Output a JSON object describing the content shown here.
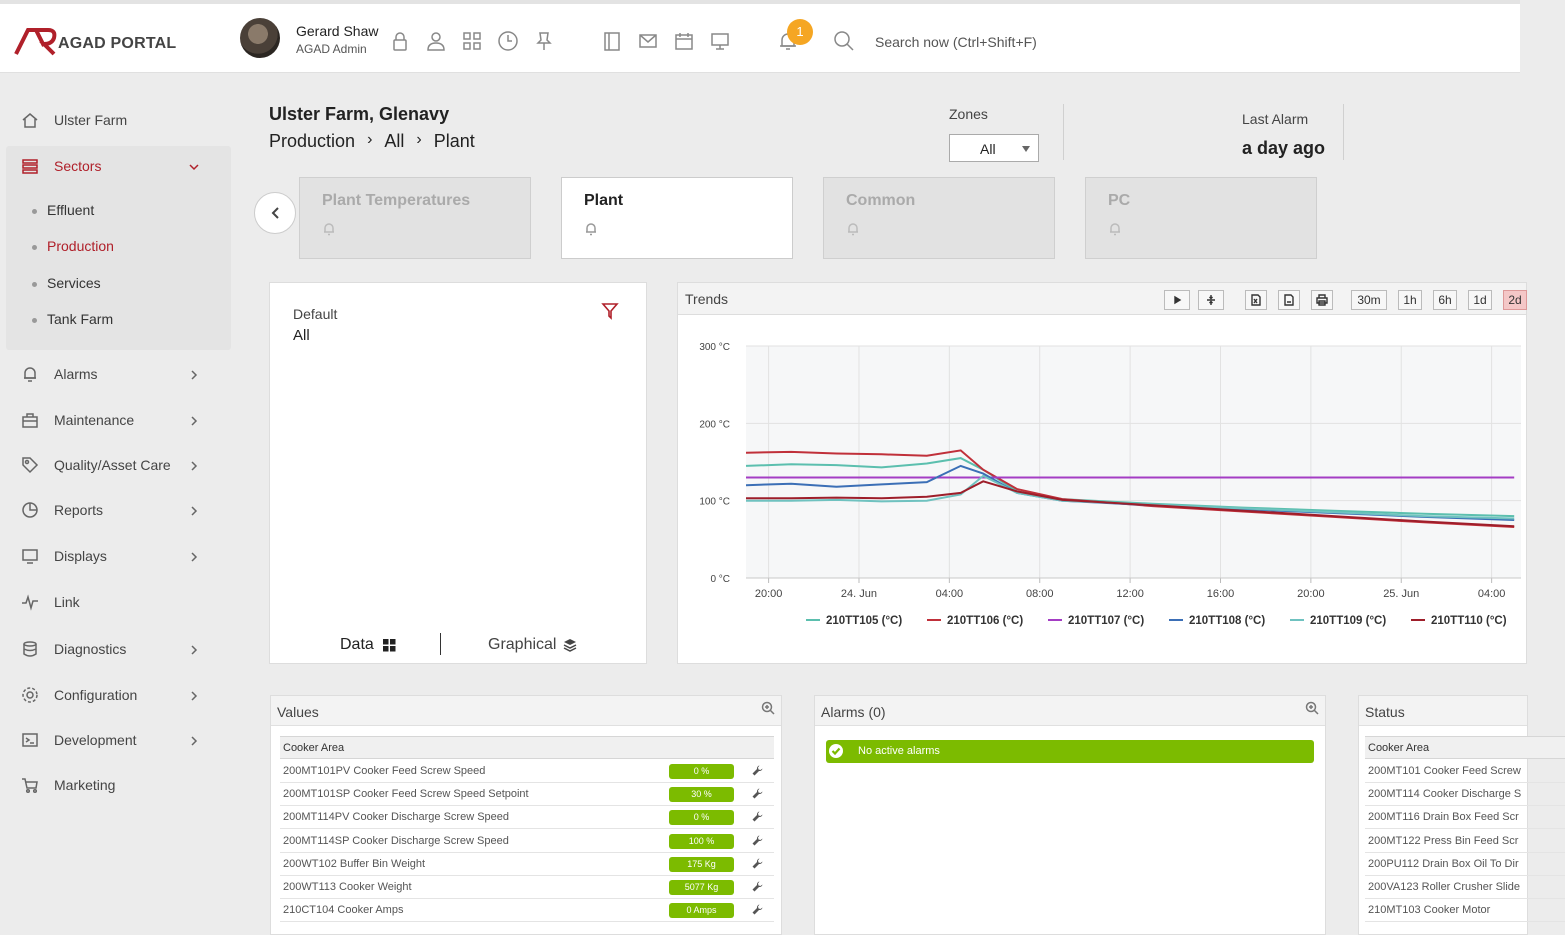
{
  "header": {
    "logo_text": "AGAD PORTAL",
    "user_name": "Gerard Shaw",
    "user_role": "AGAD Admin",
    "icons": [
      "lock-icon",
      "user-icon",
      "grid-icon",
      "clock-icon",
      "pin-icon",
      "book-icon",
      "mail-icon",
      "calendar-icon",
      "monitor-icon"
    ],
    "notification_count": "1",
    "search_placeholder": "Search now (Ctrl+Shift+F)"
  },
  "sidebar": {
    "items": [
      {
        "label": "Ulster Farm",
        "icon": "home-icon"
      },
      {
        "label": "Sectors",
        "icon": "layers-icon"
      },
      {
        "label": "Alarms",
        "icon": "bell-icon"
      },
      {
        "label": "Maintenance",
        "icon": "toolbox-icon"
      },
      {
        "label": "Quality/Asset Care",
        "icon": "tag-icon"
      },
      {
        "label": "Reports",
        "icon": "pie-icon"
      },
      {
        "label": "Displays",
        "icon": "display-icon"
      },
      {
        "label": "Link",
        "icon": "pulse-icon"
      },
      {
        "label": "Diagnostics",
        "icon": "database-icon"
      },
      {
        "label": "Configuration",
        "icon": "gear-icon"
      },
      {
        "label": "Development",
        "icon": "terminal-icon"
      },
      {
        "label": "Marketing",
        "icon": "cart-icon"
      }
    ],
    "sectors": [
      "Effluent",
      "Production",
      "Services",
      "Tank Farm"
    ],
    "active_sector": "Production",
    "accent_color": "#b0202a"
  },
  "page": {
    "title": "Ulster Farm, Glenavy",
    "breadcrumb": [
      "Production",
      "All",
      "Plant"
    ],
    "zones_label": "Zones",
    "zones_value": "All",
    "last_alarm_label": "Last Alarm",
    "last_alarm_value": "a day ago"
  },
  "cards": [
    {
      "title": "Plant Temperatures",
      "active": false
    },
    {
      "title": "Plant",
      "active": true
    },
    {
      "title": "Common",
      "active": false
    },
    {
      "title": "PC",
      "active": false
    }
  ],
  "filter_panel": {
    "label": "Default",
    "value": "All",
    "data_label": "Data",
    "graphical_label": "Graphical"
  },
  "trends": {
    "title": "Trends",
    "ranges": [
      "30m",
      "1h",
      "6h",
      "1d",
      "2d"
    ],
    "selected_range": "2d"
  },
  "chart_data": {
    "type": "line",
    "x_tick_labels": [
      "20:00",
      "24. Jun",
      "04:00",
      "08:00",
      "12:00",
      "16:00",
      "20:00",
      "25. Jun",
      "04:00"
    ],
    "y_tick_labels": [
      "0 °C",
      "100 °C",
      "200 °C",
      "300 °C"
    ],
    "ylim": [
      0,
      300
    ],
    "grid": true,
    "legend_position": "bottom",
    "series": [
      {
        "name": "210TT105 (°C)",
        "color": "#5bbfae",
        "x": [
          "19:00",
          "21:00",
          "23:00",
          "01:00",
          "03:00",
          "04:30",
          "05:30",
          "07:00",
          "09:00",
          "13:00",
          "17:00",
          "21:00",
          "01:00",
          "05:00"
        ],
        "values": [
          145,
          147,
          146,
          143,
          148,
          155,
          140,
          112,
          102,
          96,
          91,
          87,
          83,
          80
        ]
      },
      {
        "name": "210TT106 (°C)",
        "color": "#c0303a",
        "x": [
          "19:00",
          "21:00",
          "23:00",
          "01:00",
          "03:00",
          "04:30",
          "05:30",
          "07:00",
          "09:00",
          "13:00",
          "17:00",
          "21:00",
          "01:00",
          "05:00"
        ],
        "values": [
          162,
          163,
          161,
          160,
          158,
          165,
          140,
          115,
          102,
          93,
          86,
          79,
          72,
          66
        ]
      },
      {
        "name": "210TT107 (°C)",
        "color": "#a43dc4",
        "x": [
          "19:00",
          "21:00",
          "23:00",
          "01:00",
          "03:00",
          "04:30",
          "05:30",
          "07:00",
          "09:00",
          "13:00",
          "17:00",
          "21:00",
          "01:00",
          "05:00"
        ],
        "values": [
          130,
          130,
          130,
          130,
          130,
          130,
          130,
          130,
          130,
          130,
          130,
          130,
          130,
          130
        ]
      },
      {
        "name": "210TT108 (°C)",
        "color": "#3b6fb6",
        "x": [
          "19:00",
          "21:00",
          "23:00",
          "01:00",
          "03:00",
          "04:30",
          "05:30",
          "07:00",
          "09:00",
          "13:00",
          "17:00",
          "21:00",
          "01:00",
          "05:00"
        ],
        "values": [
          120,
          122,
          118,
          121,
          124,
          145,
          135,
          110,
          100,
          94,
          89,
          84,
          79,
          75
        ]
      },
      {
        "name": "210TT109 (°C)",
        "color": "#6fc2c0",
        "x": [
          "19:00",
          "21:00",
          "23:00",
          "01:00",
          "03:00",
          "04:30",
          "05:30",
          "07:00",
          "09:00",
          "13:00",
          "17:00",
          "21:00",
          "01:00",
          "05:00"
        ],
        "values": [
          100,
          100,
          101,
          99,
          100,
          108,
          132,
          110,
          100,
          95,
          90,
          85,
          80,
          77
        ]
      },
      {
        "name": "210TT110 (°C)",
        "color": "#9e1e2a",
        "x": [
          "19:00",
          "21:00",
          "23:00",
          "01:00",
          "03:00",
          "04:30",
          "05:30",
          "07:00",
          "09:00",
          "13:00",
          "17:00",
          "21:00",
          "01:00",
          "05:00"
        ],
        "values": [
          103,
          103,
          104,
          103,
          105,
          110,
          125,
          112,
          101,
          94,
          87,
          80,
          73,
          67
        ]
      }
    ]
  },
  "values_panel": {
    "title": "Values",
    "group": "Cooker Area",
    "rows": [
      {
        "name": "200MT101PV Cooker Feed Screw Speed",
        "value": "0 %"
      },
      {
        "name": "200MT101SP Cooker Feed Screw Speed Setpoint",
        "value": "30 %"
      },
      {
        "name": "200MT114PV Cooker Discharge Screw Speed",
        "value": "0 %"
      },
      {
        "name": "200MT114SP Cooker Discharge Screw Speed",
        "value": "100 %"
      },
      {
        "name": "200WT102 Buffer Bin Weight",
        "value": "175 Kg"
      },
      {
        "name": "200WT113 Cooker Weight",
        "value": "5077 Kg"
      },
      {
        "name": "210CT104 Cooker Amps",
        "value": "0 Amps"
      }
    ]
  },
  "alarms_panel": {
    "title": "Alarms (0)",
    "message": "No active alarms"
  },
  "status_panel": {
    "title": "Status",
    "group": "Cooker Area",
    "rows": [
      "200MT101 Cooker Feed Screw",
      "200MT114 Cooker Discharge S",
      "200MT116 Drain Box Feed Scr",
      "200MT122 Press Bin Feed Scr",
      "200PU112 Drain Box Oil To Dir",
      "200VA123 Roller Crusher Slide",
      "210MT103 Cooker Motor"
    ]
  }
}
